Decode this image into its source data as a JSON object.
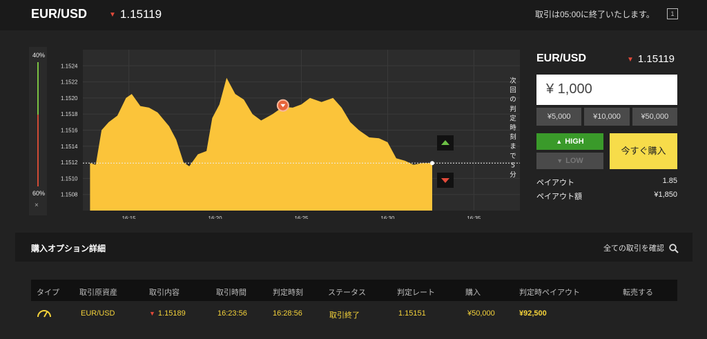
{
  "header": {
    "pair": "EUR/USD",
    "price": "1.15119",
    "notice": "取引は05:00に終了いたします。",
    "exit_label": "1"
  },
  "gauge": {
    "top_label": "40%",
    "bottom_label": "60%",
    "close": "×"
  },
  "chart_data": {
    "type": "area",
    "y_ticks": [
      "1.1524",
      "1.1522",
      "1.1520",
      "1.1518",
      "1.1516",
      "1.1514",
      "1.1512",
      "1.1510",
      "1.1508"
    ],
    "x_ticks": [
      "16:15",
      "16:20",
      "16:25",
      "16:30",
      "16:35"
    ],
    "ylim": [
      1.1506,
      1.1526
    ],
    "series": [
      {
        "values": [
          {
            "t": "16:12:45",
            "v": 1.15119
          },
          {
            "t": "16:13:05",
            "v": 1.15117
          },
          {
            "t": "16:13:25",
            "v": 1.1516
          },
          {
            "t": "16:13:50",
            "v": 1.1517
          },
          {
            "t": "16:14:20",
            "v": 1.15178
          },
          {
            "t": "16:14:50",
            "v": 1.152
          },
          {
            "t": "16:15:10",
            "v": 1.15205
          },
          {
            "t": "16:15:40",
            "v": 1.1519
          },
          {
            "t": "16:16:10",
            "v": 1.15188
          },
          {
            "t": "16:16:40",
            "v": 1.15182
          },
          {
            "t": "16:17:20",
            "v": 1.15165
          },
          {
            "t": "16:17:45",
            "v": 1.15148
          },
          {
            "t": "16:18:10",
            "v": 1.1512
          },
          {
            "t": "16:18:30",
            "v": 1.15115
          },
          {
            "t": "16:19:00",
            "v": 1.1513
          },
          {
            "t": "16:19:30",
            "v": 1.15134
          },
          {
            "t": "16:19:50",
            "v": 1.15175
          },
          {
            "t": "16:20:15",
            "v": 1.15192
          },
          {
            "t": "16:20:40",
            "v": 1.15225
          },
          {
            "t": "16:21:10",
            "v": 1.15205
          },
          {
            "t": "16:21:40",
            "v": 1.15198
          },
          {
            "t": "16:22:10",
            "v": 1.1518
          },
          {
            "t": "16:22:40",
            "v": 1.15172
          },
          {
            "t": "16:23:20",
            "v": 1.1518
          },
          {
            "t": "16:23:56",
            "v": 1.15189
          },
          {
            "t": "16:24:30",
            "v": 1.15188
          },
          {
            "t": "16:25:00",
            "v": 1.15192
          },
          {
            "t": "16:25:30",
            "v": 1.152
          },
          {
            "t": "16:26:10",
            "v": 1.15195
          },
          {
            "t": "16:26:50",
            "v": 1.152
          },
          {
            "t": "16:27:20",
            "v": 1.15188
          },
          {
            "t": "16:27:50",
            "v": 1.1517
          },
          {
            "t": "16:28:20",
            "v": 1.1516
          },
          {
            "t": "16:28:56",
            "v": 1.15151
          },
          {
            "t": "16:29:30",
            "v": 1.1515
          },
          {
            "t": "16:30:00",
            "v": 1.15145
          },
          {
            "t": "16:30:30",
            "v": 1.15125
          },
          {
            "t": "16:31:00",
            "v": 1.15122
          },
          {
            "t": "16:31:30",
            "v": 1.15117
          },
          {
            "t": "16:32:00",
            "v": 1.15119
          },
          {
            "t": "16:32:35",
            "v": 1.15119
          }
        ]
      }
    ],
    "current_level": "1.15119",
    "marker": {
      "time": "16:23:56",
      "value": 1.15189,
      "direction": "down"
    },
    "countdown_label": "次回の判定時刻まで5分"
  },
  "panel": {
    "pair": "EUR/USD",
    "price": "1.15119",
    "amount": "¥ 1,000",
    "presets": [
      "¥5,000",
      "¥10,000",
      "¥50,000"
    ],
    "high_label": "HIGH",
    "low_label": "LOW",
    "buy_now": "今すぐ購入",
    "payout_label": "ペイアウト",
    "payout_value": "1.85",
    "payout_amount_label": "ペイアウト額",
    "payout_amount_value": "¥1,850"
  },
  "section": {
    "title": "購入オプション詳細",
    "link": "全ての取引を確認"
  },
  "table": {
    "headers": [
      "タイプ",
      "取引原資産",
      "取引内容",
      "取引時間",
      "判定時刻",
      "ステータス",
      "判定レート",
      "購入",
      "判定時ペイアウト",
      "転売する"
    ],
    "rows": [
      [
        "",
        "EUR/USD",
        "1.15189",
        "16:23:56",
        "16:28:56",
        "取引終了",
        "1.15151",
        "¥50,000",
        "¥92,500",
        ""
      ]
    ]
  },
  "colors": {
    "accent_yellow": "#f7dc4a",
    "area_fill": "#fbc43a",
    "high_green": "#3a9a2a",
    "down_red": "#e24a3a"
  }
}
